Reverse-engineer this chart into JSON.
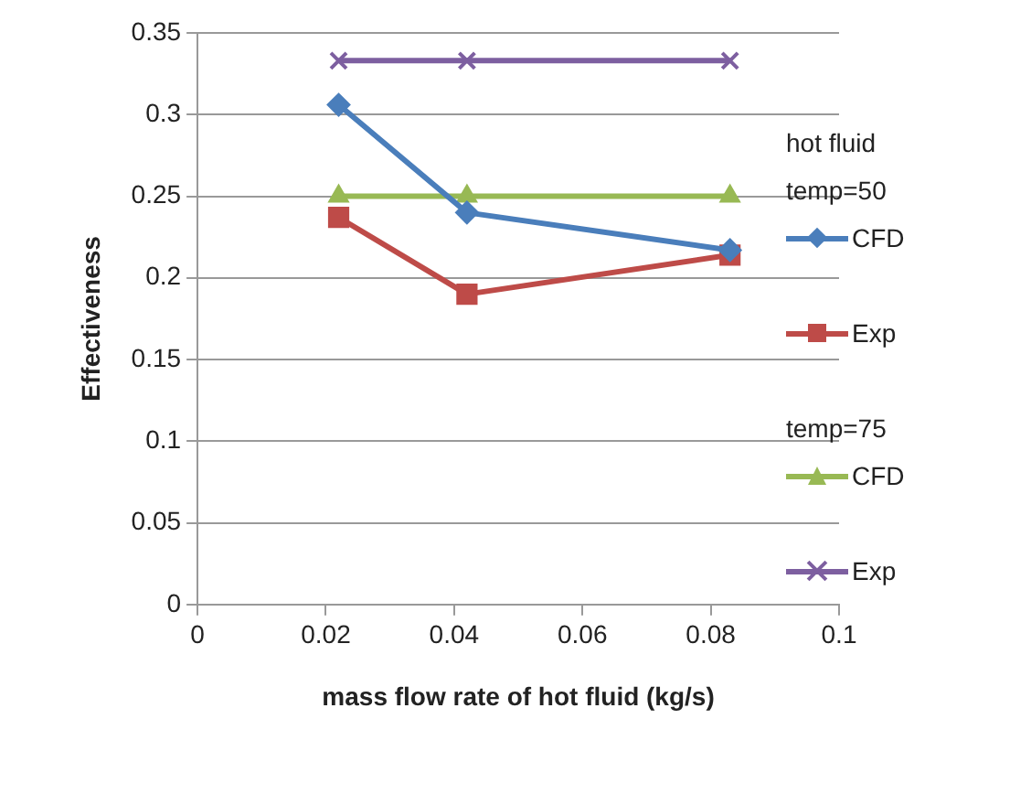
{
  "chart_data": {
    "type": "line",
    "xlabel": "mass flow rate of hot fluid (kg/s)",
    "ylabel": "Effectiveness",
    "legend_title": "hot fluid",
    "annotations": [
      "temp=50",
      "temp=75"
    ],
    "x": [
      0.022,
      0.042,
      0.083
    ],
    "series": [
      {
        "name": "CFD",
        "color": "#4a7ebb",
        "marker": "diamond",
        "values": [
          0.306,
          0.24,
          0.217
        ]
      },
      {
        "name": "Exp",
        "color": "#be4b48",
        "marker": "square",
        "values": [
          0.237,
          0.19,
          0.214
        ]
      },
      {
        "name": "CFD",
        "color": "#98b954",
        "marker": "triangle",
        "values": [
          0.25,
          0.25,
          0.25
        ]
      },
      {
        "name": "Exp",
        "color": "#7d5fa0",
        "marker": "cross",
        "values": [
          0.333,
          0.333,
          0.333
        ]
      }
    ],
    "xlim": [
      0,
      0.1
    ],
    "xticks": [
      0,
      0.02,
      0.04,
      0.06,
      0.08,
      0.1
    ],
    "ylim": [
      0,
      0.35
    ],
    "yticks": [
      0,
      0.05,
      0.1,
      0.15,
      0.2,
      0.25,
      0.3,
      0.35
    ],
    "grid": "y",
    "legend": "right"
  }
}
